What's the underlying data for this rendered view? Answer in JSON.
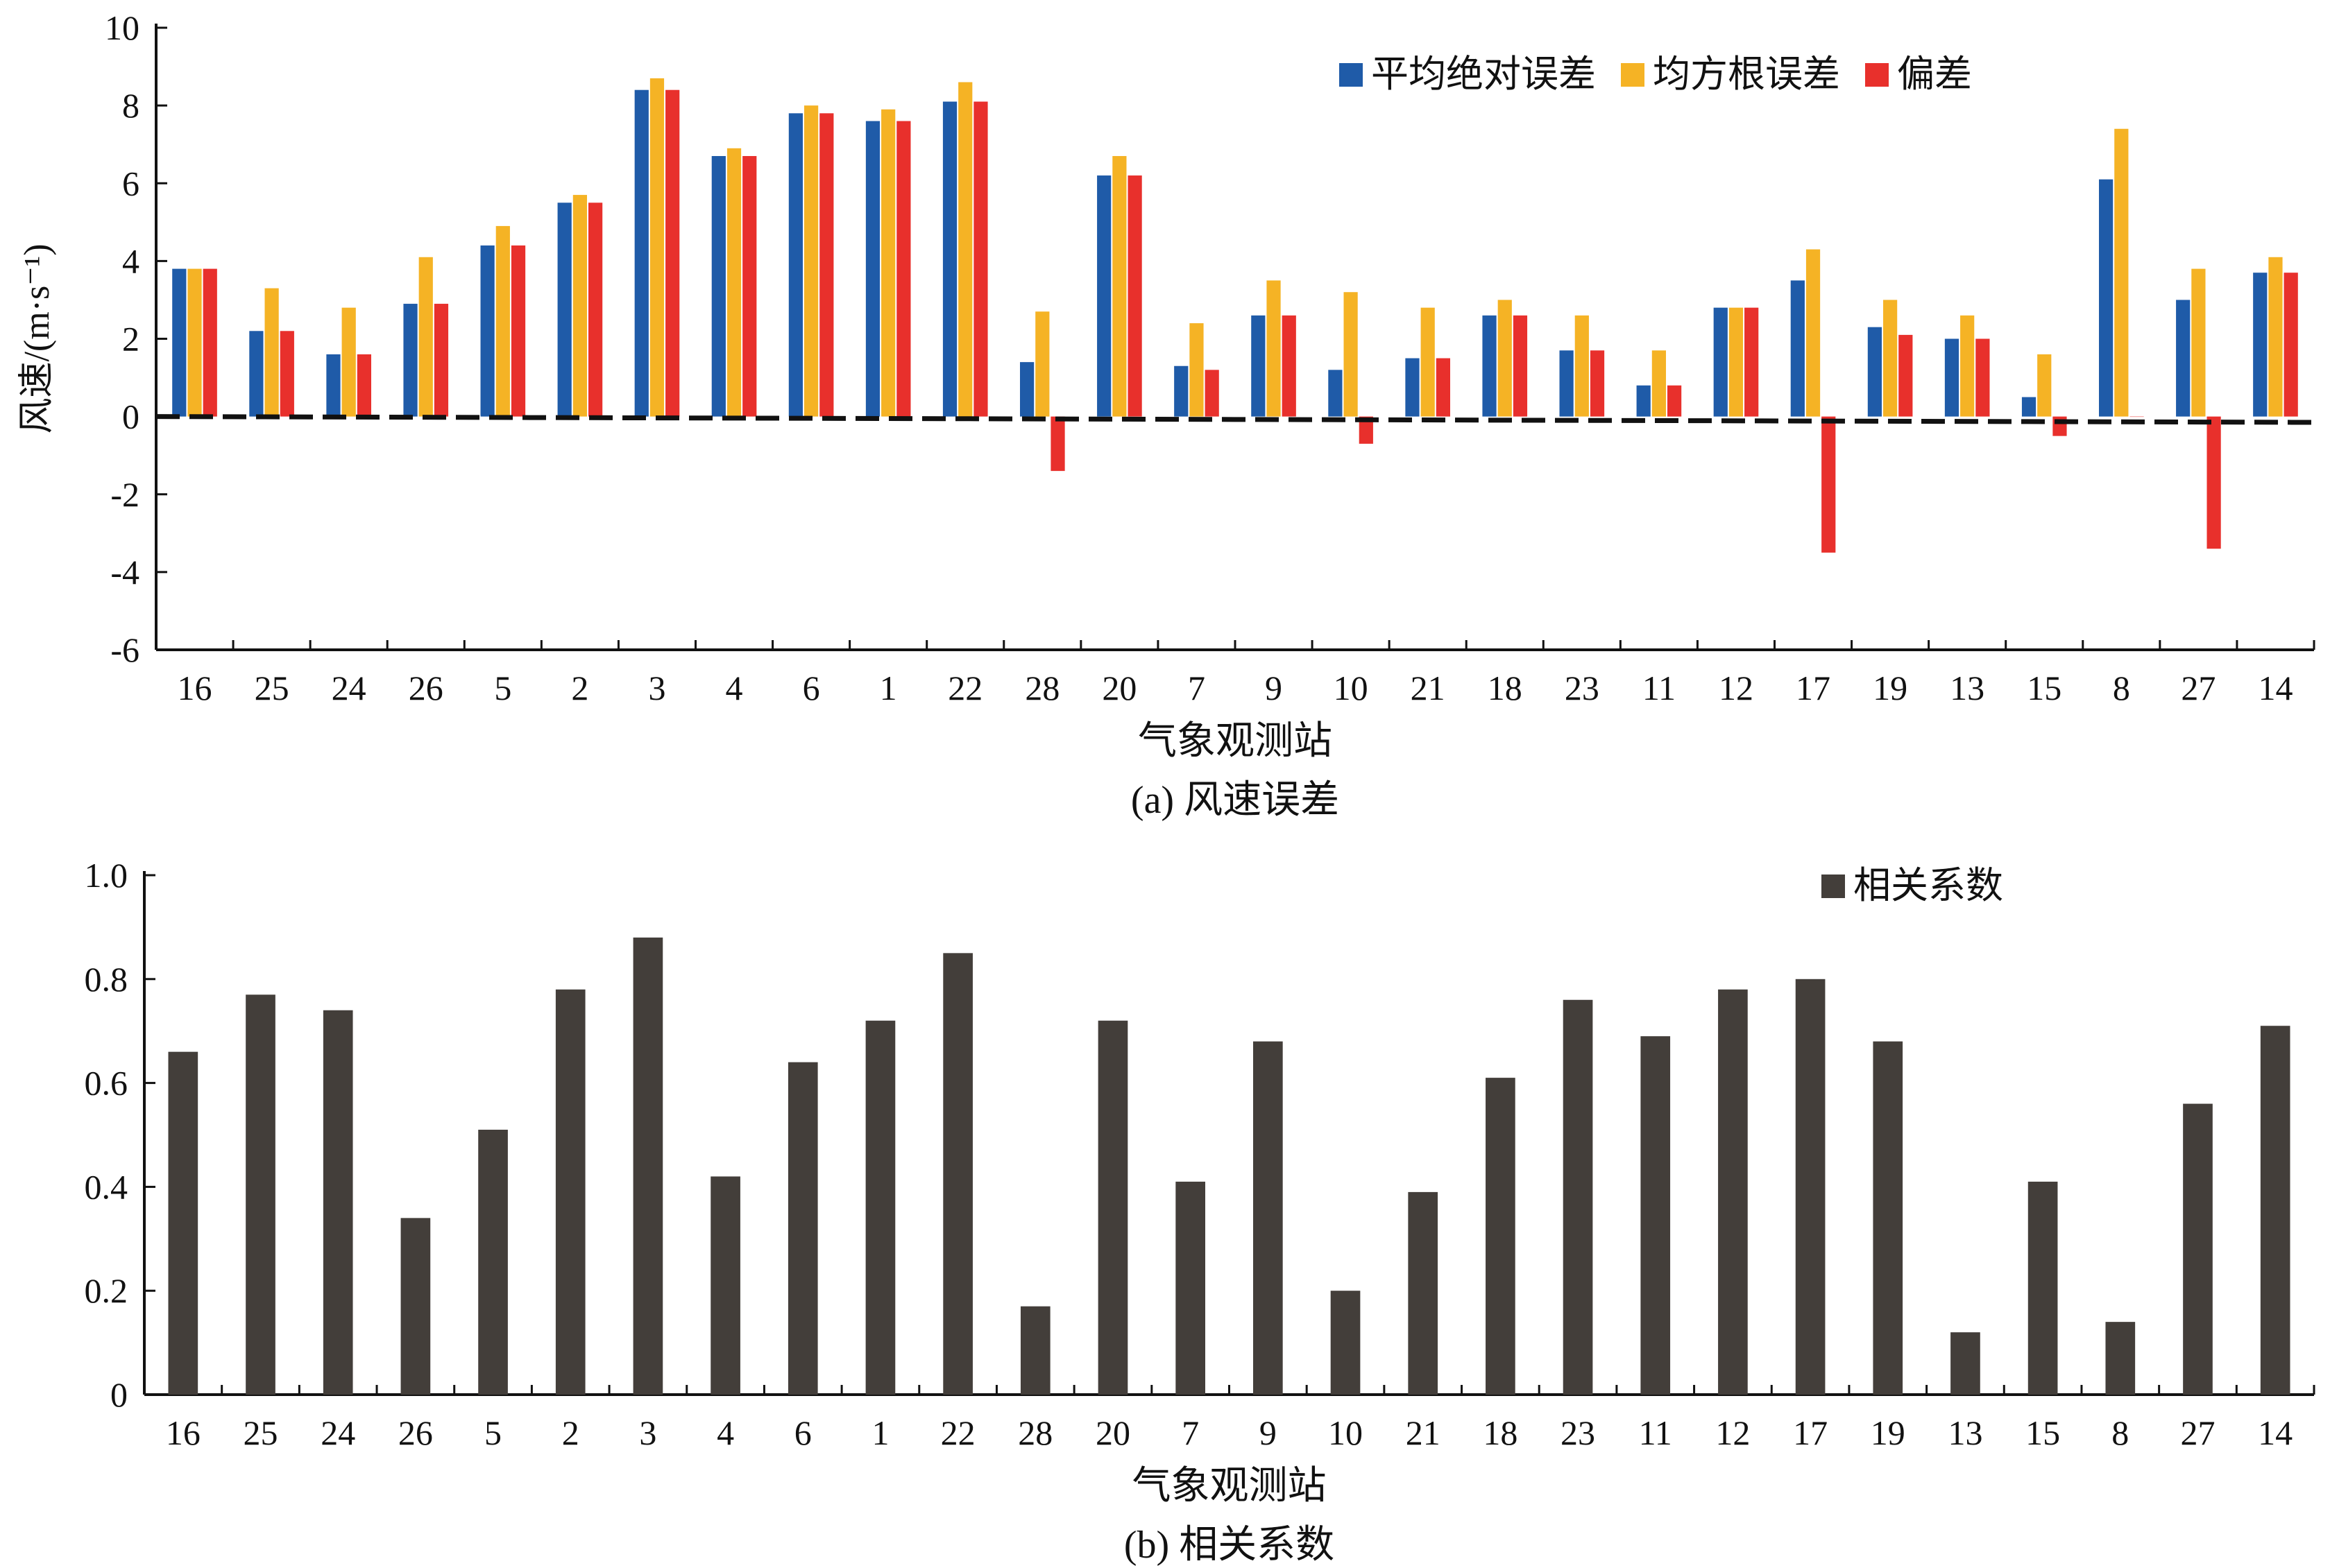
{
  "chart_data": [
    {
      "type": "bar",
      "caption": "(a) 风速误差",
      "xlabel": "气象观测站",
      "ylabel": "风速/(m·s⁻¹)",
      "ylim": [
        -6,
        10
      ],
      "yticks": [
        -6,
        -4,
        -2,
        0,
        2,
        4,
        6,
        8,
        10
      ],
      "categories": [
        "16",
        "25",
        "24",
        "26",
        "5",
        "2",
        "3",
        "4",
        "6",
        "1",
        "22",
        "28",
        "20",
        "7",
        "9",
        "10",
        "21",
        "18",
        "23",
        "11",
        "12",
        "17",
        "19",
        "13",
        "15",
        "8",
        "27",
        "14"
      ],
      "series": [
        {
          "name": "平均绝对误差",
          "color": "#1f5ba8",
          "values": [
            3.8,
            2.2,
            1.6,
            2.9,
            4.4,
            5.5,
            8.4,
            6.7,
            7.8,
            7.6,
            8.1,
            1.4,
            6.2,
            1.3,
            2.6,
            1.2,
            1.5,
            2.6,
            1.7,
            0.8,
            2.8,
            3.5,
            2.3,
            2.0,
            0.5,
            6.1,
            3.0,
            3.7
          ]
        },
        {
          "name": "均方根误差",
          "color": "#f5b325",
          "values": [
            3.8,
            3.3,
            2.8,
            4.1,
            4.9,
            5.7,
            8.7,
            6.9,
            8.0,
            7.9,
            8.6,
            2.7,
            6.7,
            2.4,
            3.5,
            3.2,
            2.8,
            3.0,
            2.6,
            1.7,
            2.8,
            4.3,
            3.0,
            2.6,
            1.6,
            7.4,
            3.8,
            4.1
          ]
        },
        {
          "name": "偏差",
          "color": "#e8302c",
          "values": [
            3.8,
            2.2,
            1.6,
            2.9,
            4.4,
            5.5,
            8.4,
            6.7,
            7.8,
            7.6,
            8.1,
            -1.4,
            6.2,
            1.2,
            2.6,
            -0.7,
            1.5,
            2.6,
            1.7,
            0.8,
            2.8,
            -3.5,
            2.1,
            2.0,
            -0.5,
            0.0,
            -3.4,
            3.7
          ]
        }
      ],
      "reference_line": {
        "style": "dashed",
        "from_value": 0.0,
        "to_value": -0.15
      },
      "legend_position": "top-right",
      "grid": false
    },
    {
      "type": "bar",
      "caption": "(b) 相关系数",
      "xlabel": "气象观测站",
      "ylabel": "",
      "ylim": [
        0,
        1.0
      ],
      "yticks": [
        "0",
        "0.2",
        "0.4",
        "0.6",
        "0.8",
        "1.0"
      ],
      "categories": [
        "16",
        "25",
        "24",
        "26",
        "5",
        "2",
        "3",
        "4",
        "6",
        "1",
        "22",
        "28",
        "20",
        "7",
        "9",
        "10",
        "21",
        "18",
        "23",
        "11",
        "12",
        "17",
        "19",
        "13",
        "15",
        "8",
        "27",
        "14"
      ],
      "series": [
        {
          "name": "相关系数",
          "color": "#433e3a",
          "values": [
            0.66,
            0.77,
            0.74,
            0.34,
            0.51,
            0.78,
            0.88,
            0.42,
            0.64,
            0.72,
            0.85,
            0.17,
            0.72,
            0.41,
            0.68,
            0.2,
            0.39,
            0.61,
            0.76,
            0.69,
            0.78,
            0.8,
            0.68,
            0.12,
            0.41,
            0.14,
            0.56,
            0.71
          ]
        }
      ],
      "legend_position": "top-right",
      "grid": false
    }
  ]
}
